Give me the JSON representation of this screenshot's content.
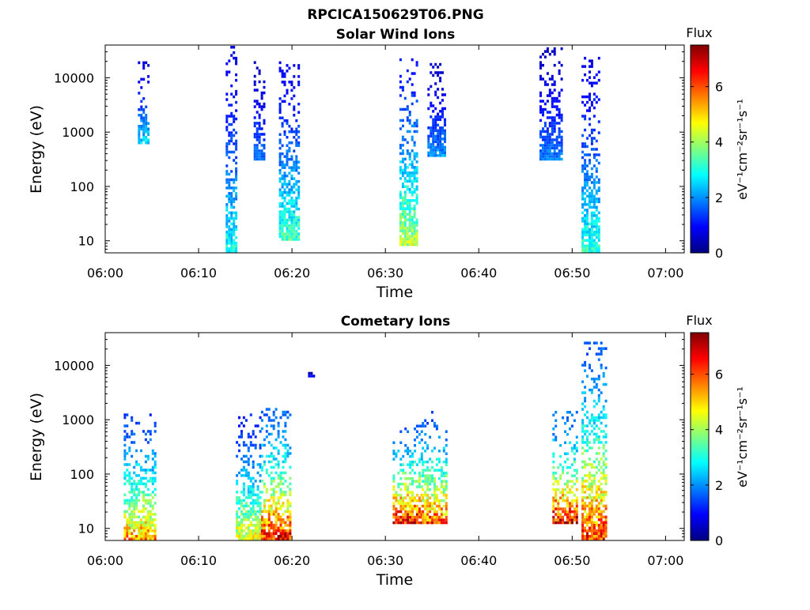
{
  "figure": {
    "title": "RPCICA150629T06.PNG"
  },
  "chart_data": [
    {
      "type": "heatmap",
      "title": "Solar Wind Ions",
      "xlabel": "Time",
      "ylabel": "Energy (eV)",
      "x_ticks": [
        "06:00",
        "06:10",
        "06:20",
        "06:30",
        "06:40",
        "06:50",
        "07:00"
      ],
      "xlim": [
        "06:00",
        "07:02"
      ],
      "y_scale": "log",
      "y_ticks": [
        "10",
        "100",
        "1000",
        "10000"
      ],
      "ylim": [
        6,
        40000
      ],
      "colorbar": {
        "title": "Flux",
        "label": "eV⁻¹cm⁻²sr⁻¹s⁻¹",
        "ticks": [
          "0",
          "2",
          "4",
          "6"
        ],
        "range": [
          0,
          7.5
        ],
        "colormap": "jet"
      },
      "bursts": [
        {
          "t_start": 6.0583,
          "t_end": 6.075,
          "e_top": 18000,
          "e_bottom": 600,
          "peak_flux": 2.8
        },
        {
          "t_start": 6.215,
          "t_end": 6.235,
          "e_top": 35000,
          "e_bottom": 6,
          "peak_flux": 3.2
        },
        {
          "t_start": 6.265,
          "t_end": 6.285,
          "e_top": 18000,
          "e_bottom": 300,
          "peak_flux": 2.0
        },
        {
          "t_start": 6.31,
          "t_end": 6.345,
          "e_top": 20000,
          "e_bottom": 10,
          "peak_flux": 3.6
        },
        {
          "t_start": 6.525,
          "t_end": 6.555,
          "e_top": 22000,
          "e_bottom": 8,
          "peak_flux": 4.5
        },
        {
          "t_start": 6.575,
          "t_end": 6.608,
          "e_top": 18000,
          "e_bottom": 350,
          "peak_flux": 2.2
        },
        {
          "t_start": 6.775,
          "t_end": 6.813,
          "e_top": 38000,
          "e_bottom": 300,
          "peak_flux": 2.0
        },
        {
          "t_start": 6.85,
          "t_end": 6.882,
          "e_top": 25000,
          "e_bottom": 6,
          "peak_flux": 3.4
        }
      ]
    },
    {
      "type": "heatmap",
      "title": "Cometary Ions",
      "xlabel": "Time",
      "ylabel": "Energy (eV)",
      "x_ticks": [
        "06:00",
        "06:10",
        "06:20",
        "06:30",
        "06:40",
        "06:50",
        "07:00"
      ],
      "xlim": [
        "06:00",
        "07:02"
      ],
      "y_scale": "log",
      "y_ticks": [
        "10",
        "100",
        "1000",
        "10000"
      ],
      "ylim": [
        6,
        40000
      ],
      "colorbar": {
        "title": "Flux",
        "label": "eV⁻¹cm⁻²sr⁻¹s⁻¹",
        "ticks": [
          "0",
          "2",
          "4",
          "6"
        ],
        "range": [
          0,
          7.5
        ],
        "colormap": "jet"
      },
      "bursts": [
        {
          "t_start": 6.033,
          "t_end": 6.09,
          "e_top": 1300,
          "e_bottom": 6,
          "peak_flux": 5.8
        },
        {
          "t_start": 6.233,
          "t_end": 6.278,
          "e_top": 1200,
          "e_bottom": 6,
          "peak_flux": 5.0
        },
        {
          "t_start": 6.278,
          "t_end": 6.33,
          "e_top": 1600,
          "e_bottom": 6,
          "peak_flux": 7.0
        },
        {
          "t_start": 6.362,
          "t_end": 6.372,
          "e_top": 7000,
          "e_bottom": 6000,
          "peak_flux": 1.0
        },
        {
          "t_start": 6.513,
          "t_end": 6.565,
          "e_top": 800,
          "e_bottom": 12,
          "peak_flux": 7.2
        },
        {
          "t_start": 6.565,
          "t_end": 6.61,
          "e_top": 1300,
          "e_bottom": 12,
          "peak_flux": 6.5
        },
        {
          "t_start": 6.798,
          "t_end": 6.84,
          "e_top": 1300,
          "e_bottom": 12,
          "peak_flux": 7.3
        },
        {
          "t_start": 6.85,
          "t_end": 6.895,
          "e_top": 25000,
          "e_bottom": 6,
          "peak_flux": 6.8
        }
      ]
    }
  ]
}
